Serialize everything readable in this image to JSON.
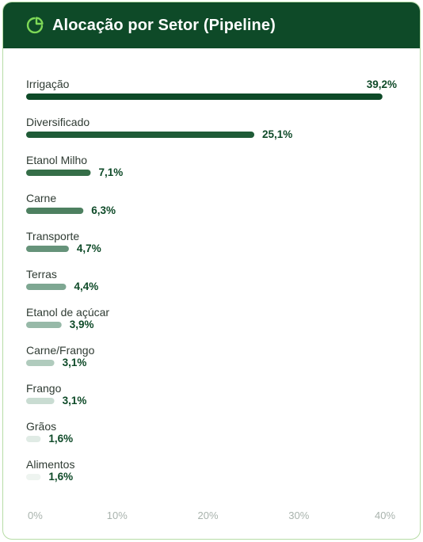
{
  "header": {
    "title": "Alocação por Setor (Pipeline)",
    "icon": "pie-chart-icon",
    "background_color": "#0e4a28"
  },
  "chart_data": {
    "type": "bar",
    "orientation": "horizontal",
    "title": "Alocação por Setor (Pipeline)",
    "categories": [
      "Irrigação",
      "Diversificado",
      "Etanol Milho",
      "Carne",
      "Transporte",
      "Terras",
      "Etanol de açúcar",
      "Carne/Frango",
      "Frango",
      "Grãos",
      "Alimentos"
    ],
    "values": [
      39.2,
      25.1,
      7.1,
      6.3,
      4.7,
      4.4,
      3.9,
      3.1,
      3.1,
      1.6,
      1.6
    ],
    "value_labels": [
      "39,2%",
      "25,1%",
      "7,1%",
      "6,3%",
      "4,7%",
      "4,4%",
      "3,9%",
      "3,1%",
      "3,1%",
      "1,6%",
      "1,6%"
    ],
    "colors": [
      "#0e4a28",
      "#1f5b37",
      "#356e48",
      "#4d8060",
      "#66937a",
      "#7ea792",
      "#97b9a8",
      "#b0cbbd",
      "#c9dcd2",
      "#e0ebe5",
      "#eef4f0"
    ],
    "xlim": [
      0,
      40
    ],
    "xticks": [
      "0%",
      "10%",
      "20%",
      "30%",
      "40%"
    ],
    "xtick_values": [
      0,
      10,
      20,
      30,
      40
    ],
    "grid": false,
    "legend": "none"
  }
}
